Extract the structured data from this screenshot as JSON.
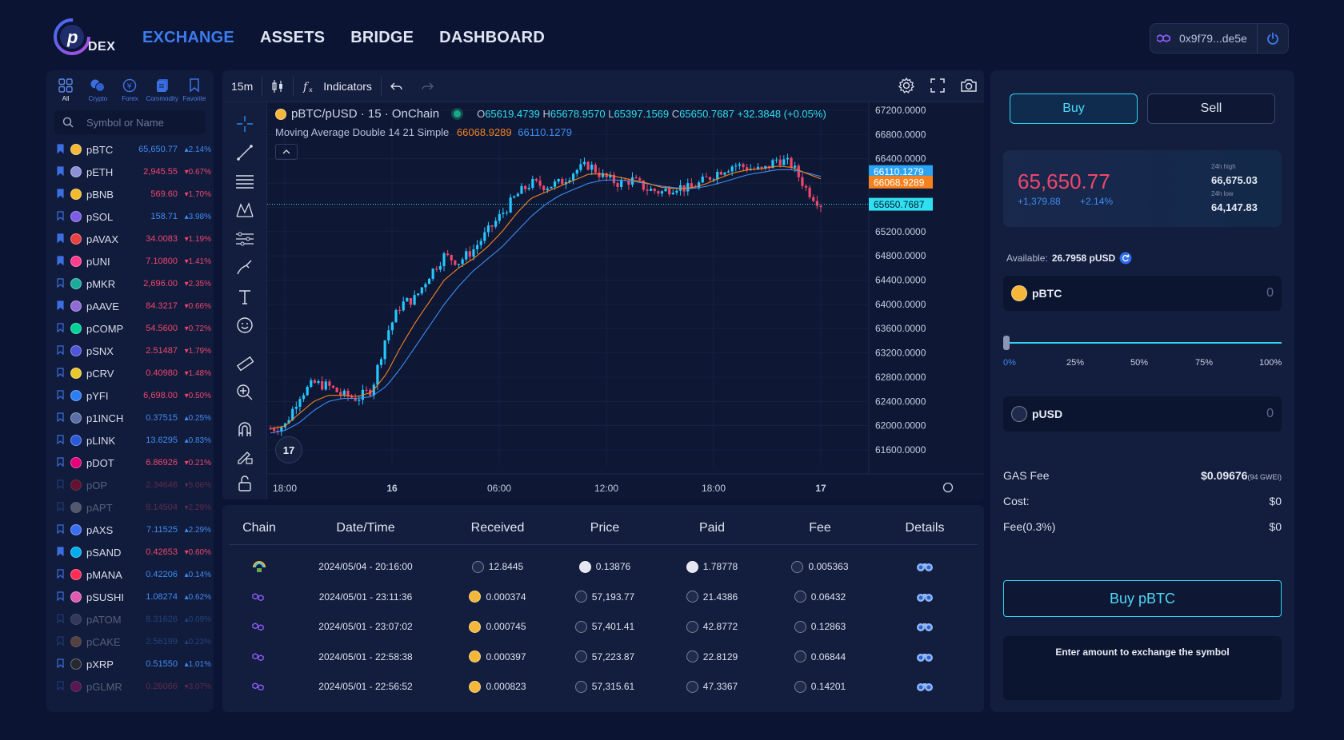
{
  "app": {
    "logo_text": "DEX"
  },
  "nav": [
    {
      "label": "EXCHANGE",
      "active": true
    },
    {
      "label": "ASSETS",
      "active": false
    },
    {
      "label": "BRIDGE",
      "active": false
    },
    {
      "label": "DASHBOARD",
      "active": false
    }
  ],
  "wallet": {
    "address": "0x9f79...de5e"
  },
  "categories": [
    {
      "label": "All",
      "icon": "grid-icon"
    },
    {
      "label": "Crypto",
      "icon": "coins-icon"
    },
    {
      "label": "Forex",
      "icon": "yen-icon"
    },
    {
      "label": "Commodity",
      "icon": "stack-icon"
    },
    {
      "label": "Favorite",
      "icon": "bookmark-icon"
    }
  ],
  "search": {
    "placeholder": "Symbol or Name"
  },
  "symbols": [
    {
      "name": "pBTC",
      "price": "65,650.77",
      "change": "▴2.14%",
      "up": true,
      "fav": true,
      "dim": false,
      "color": "#f4b73a"
    },
    {
      "name": "pETH",
      "price": "2,945.55",
      "change": "▾0.67%",
      "up": false,
      "fav": true,
      "dim": false,
      "color": "#8c8fd6"
    },
    {
      "name": "pBNB",
      "price": "569.60",
      "change": "▾1.70%",
      "up": false,
      "fav": true,
      "dim": false,
      "color": "#f3ba2f"
    },
    {
      "name": "pSOL",
      "price": "158.71",
      "change": "▴3.98%",
      "up": true,
      "fav": false,
      "dim": false,
      "color": "#7d5ce6"
    },
    {
      "name": "pAVAX",
      "price": "34.0083",
      "change": "▾1.19%",
      "up": false,
      "fav": true,
      "dim": false,
      "color": "#e84142"
    },
    {
      "name": "pUNI",
      "price": "7.10800",
      "change": "▾1.41%",
      "up": false,
      "fav": true,
      "dim": false,
      "color": "#ff3c8e"
    },
    {
      "name": "pMKR",
      "price": "2,696.00",
      "change": "▾2.35%",
      "up": false,
      "fav": false,
      "dim": false,
      "color": "#1aab9b"
    },
    {
      "name": "pAAVE",
      "price": "84.3217",
      "change": "▾0.66%",
      "up": false,
      "fav": true,
      "dim": false,
      "color": "#8f6bd8"
    },
    {
      "name": "pCOMP",
      "price": "54.5600",
      "change": "▾0.72%",
      "up": false,
      "fav": false,
      "dim": false,
      "color": "#00d395"
    },
    {
      "name": "pSNX",
      "price": "2.51487",
      "change": "▾1.79%",
      "up": false,
      "fav": false,
      "dim": false,
      "color": "#4f55d8"
    },
    {
      "name": "pCRV",
      "price": "0.40980",
      "change": "▾1.48%",
      "up": false,
      "fav": false,
      "dim": false,
      "color": "#e9c72d"
    },
    {
      "name": "pYFI",
      "price": "6,698.00",
      "change": "▾0.50%",
      "up": false,
      "fav": false,
      "dim": false,
      "color": "#2c7ef5"
    },
    {
      "name": "p1INCH",
      "price": "0.37515",
      "change": "▴0.25%",
      "up": true,
      "fav": false,
      "dim": false,
      "color": "#5a6fa8"
    },
    {
      "name": "pLINK",
      "price": "13.6295",
      "change": "▴0.83%",
      "up": true,
      "fav": false,
      "dim": false,
      "color": "#2a5ada"
    },
    {
      "name": "pDOT",
      "price": "6.86926",
      "change": "▾0.21%",
      "up": false,
      "fav": false,
      "dim": false,
      "color": "#e6007a"
    },
    {
      "name": "pOP",
      "price": "2.34646",
      "change": "▾5.06%",
      "up": false,
      "fav": false,
      "dim": true,
      "color": "#ff0420"
    },
    {
      "name": "pAPT",
      "price": "8.14504",
      "change": "▾2.29%",
      "up": false,
      "fav": false,
      "dim": true,
      "color": "#cccccc"
    },
    {
      "name": "pAXS",
      "price": "7.11525",
      "change": "▴2.29%",
      "up": true,
      "fav": false,
      "dim": false,
      "color": "#3a6df0"
    },
    {
      "name": "pSAND",
      "price": "0.42653",
      "change": "▾0.60%",
      "up": false,
      "fav": true,
      "dim": false,
      "color": "#00adef"
    },
    {
      "name": "pMANA",
      "price": "0.42206",
      "change": "▴0.14%",
      "up": true,
      "fav": false,
      "dim": false,
      "color": "#ff2d55"
    },
    {
      "name": "pSUSHI",
      "price": "1.08274",
      "change": "▴0.62%",
      "up": true,
      "fav": false,
      "dim": false,
      "color": "#e05ab1"
    },
    {
      "name": "pATOM",
      "price": "8.31626",
      "change": "▴0.09%",
      "up": true,
      "fav": false,
      "dim": true,
      "color": "#6f7390"
    },
    {
      "name": "pCAKE",
      "price": "2.56199",
      "change": "▴0.23%",
      "up": true,
      "fav": false,
      "dim": true,
      "color": "#d1884f"
    },
    {
      "name": "pXRP",
      "price": "0.51550",
      "change": "▴1.01%",
      "up": true,
      "fav": false,
      "dim": false,
      "color": "#23292f"
    },
    {
      "name": "pGLMR",
      "price": "0.26066",
      "change": "▾3.07%",
      "up": false,
      "fav": false,
      "dim": true,
      "color": "#e1147b"
    }
  ],
  "chart": {
    "interval": "15m",
    "indicators_label": "Indicators",
    "pair": "pBTC/pUSD · 15 · OnChain",
    "o_label": "O",
    "o": "65619.4739",
    "h_label": "H",
    "h": "65678.9570",
    "l_label": "L",
    "l": "65397.1569",
    "c_label": "C",
    "c": "65650.7687",
    "chg": "+32.3848 (+0.05%)",
    "ma_label": "Moving Average Double 14 21 Simple",
    "ma1": "66068.9289",
    "ma2": "66110.1279",
    "tv_logo": "17",
    "colors": {
      "up": "#26c6ff",
      "down": "#f0466b",
      "ma_fast": "#f5821f",
      "ma_slow": "#3d8df2"
    }
  },
  "chart_data": {
    "type": "candlestick",
    "title": "pBTC/pUSD · 15 · OnChain",
    "ylim": [
      61600,
      67200
    ],
    "y_ticks": [
      "67200.0000",
      "66800.0000",
      "66400.0000",
      "66000.0000",
      "65600.0000",
      "65200.0000",
      "64800.0000",
      "64400.0000",
      "64000.0000",
      "63600.0000",
      "63200.0000",
      "62800.0000",
      "62400.0000",
      "62000.0000",
      "61600.0000"
    ],
    "x_ticks": [
      "18:00",
      "16",
      "06:00",
      "12:00",
      "18:00",
      "17"
    ],
    "price_labels": [
      {
        "value": 66110.1279,
        "text": "66110.1279",
        "color": "#2aa4f4"
      },
      {
        "value": 66068.9289,
        "text": "66068.9289",
        "color": "#f5821f"
      },
      {
        "value": 65650.7687,
        "text": "65650.7687",
        "color": "#2fe0f0"
      }
    ],
    "close_path": [
      61950,
      62000,
      62500,
      62700,
      62650,
      62500,
      62450,
      62600,
      63500,
      64000,
      64100,
      64500,
      64800,
      64700,
      64900,
      65200,
      65500,
      65800,
      66000,
      65950,
      66000,
      66200,
      66300,
      66100,
      66000,
      66050,
      65900,
      65850,
      65950,
      65900,
      66050,
      66200,
      66300,
      66250,
      66200,
      66400,
      66300,
      65900,
      65650
    ],
    "ma_fast_path": [
      61950,
      61990,
      62200,
      62400,
      62500,
      62500,
      62480,
      62550,
      62850,
      63300,
      63700,
      64050,
      64400,
      64600,
      64750,
      64950,
      65200,
      65500,
      65750,
      65850,
      65950,
      66050,
      66150,
      66150,
      66100,
      66050,
      66000,
      65930,
      65910,
      65920,
      65980,
      66080,
      66170,
      66220,
      66240,
      66280,
      66260,
      66160,
      66070
    ],
    "ma_slow_path": [
      61880,
      61920,
      62050,
      62250,
      62400,
      62450,
      62450,
      62480,
      62650,
      62950,
      63300,
      63650,
      64000,
      64300,
      64550,
      64750,
      64950,
      65200,
      65450,
      65650,
      65800,
      65900,
      66000,
      66050,
      66050,
      66030,
      65990,
      65950,
      65920,
      65910,
      65940,
      66000,
      66070,
      66140,
      66180,
      66220,
      66220,
      66170,
      66110
    ]
  },
  "trades": {
    "headers": [
      "Chain",
      "Date/Time",
      "Received",
      "Price",
      "Paid",
      "Fee",
      "Details"
    ],
    "rows": [
      {
        "date": "2024/05/04 - 20:16:00",
        "received": "12.8445",
        "price": "0.13876",
        "paid": "1.78778",
        "fee": "0.005363",
        "chain_icon": "rainbow-chain-icon",
        "recv_color": "#1f2b4d",
        "price_color": "#e6e6f0",
        "paid_color": "#e6e6f0",
        "fee_color": "#1f2b4d"
      },
      {
        "date": "2024/05/01 - 23:11:36",
        "received": "0.000374",
        "price": "57,193.77",
        "paid": "21.4386",
        "fee": "0.06432",
        "chain_icon": "polygon-icon",
        "recv_color": "#f4b73a",
        "price_color": "#1f2b4d",
        "paid_color": "#1f2b4d",
        "fee_color": "#1f2b4d"
      },
      {
        "date": "2024/05/01 - 23:07:02",
        "received": "0.000745",
        "price": "57,401.41",
        "paid": "42.8772",
        "fee": "0.12863",
        "chain_icon": "polygon-icon",
        "recv_color": "#f4b73a",
        "price_color": "#1f2b4d",
        "paid_color": "#1f2b4d",
        "fee_color": "#1f2b4d"
      },
      {
        "date": "2024/05/01 - 22:58:38",
        "received": "0.000397",
        "price": "57,223.87",
        "paid": "22.8129",
        "fee": "0.06844",
        "chain_icon": "polygon-icon",
        "recv_color": "#f4b73a",
        "price_color": "#1f2b4d",
        "paid_color": "#1f2b4d",
        "fee_color": "#1f2b4d"
      },
      {
        "date": "2024/05/01 - 22:56:52",
        "received": "0.000823",
        "price": "57,315.61",
        "paid": "47.3367",
        "fee": "0.14201",
        "chain_icon": "polygon-icon",
        "recv_color": "#f4b73a",
        "price_color": "#1f2b4d",
        "paid_color": "#1f2b4d",
        "fee_color": "#1f2b4d"
      }
    ]
  },
  "order": {
    "buy_label": "Buy",
    "sell_label": "Sell",
    "last_price": "65,650.77",
    "change_abs": "+1,379.88",
    "change_pct": "+2.14%",
    "high_label": "24h high",
    "high": "66,675.03",
    "low_label": "24h low",
    "low": "64,147.83",
    "available_label": "Available:",
    "available": "26.7958 pUSD",
    "base_token": "pBTC",
    "base_value": "0",
    "quote_token": "pUSD",
    "quote_value": "0",
    "slider_ticks": [
      "0%",
      "25%",
      "50%",
      "75%",
      "100%"
    ],
    "slider_value_pct": 0,
    "gas_label": "GAS Fee",
    "gas_value": "$0.09676",
    "gas_gwei": "(94 GWEI)",
    "cost_label": "Cost:",
    "cost_value": "$0",
    "fee_label": "Fee(0.3%)",
    "fee_value": "$0",
    "submit_label": "Buy pBTC",
    "hint": "Enter amount to exchange the symbol"
  }
}
